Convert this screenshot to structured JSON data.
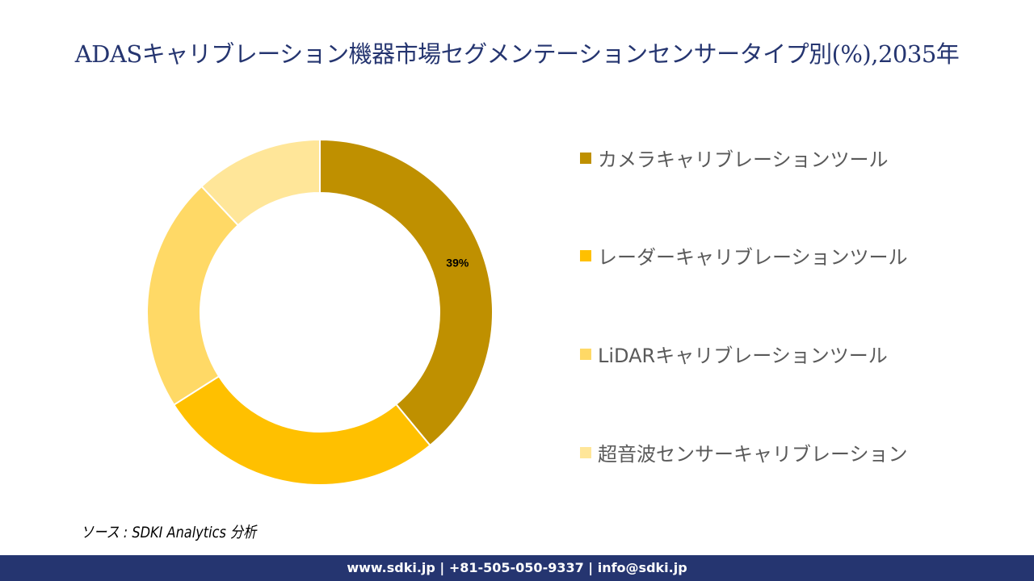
{
  "title": "ADASキャリブレーション機器市場セグメンテーションセンサータイプ別(%),2035年",
  "chart_data": {
    "type": "pie",
    "variant": "donut",
    "categories": [
      "カメラキャリブレーションツール",
      "レーダーキャリブレーションツール",
      "LiDARキャリブレーションツール",
      "超音波センサーキャリブレーション"
    ],
    "values": [
      39,
      27,
      22,
      12
    ],
    "colors": [
      "#BF9000",
      "#FFC000",
      "#FFD966",
      "#FFE699"
    ],
    "data_labels": [
      "39%",
      "",
      "",
      ""
    ],
    "legend_position": "right"
  },
  "source": "ソース : SDKI Analytics 分析",
  "footer": "www.sdki.jp | +81-505-050-9337 | info@sdki.jp"
}
